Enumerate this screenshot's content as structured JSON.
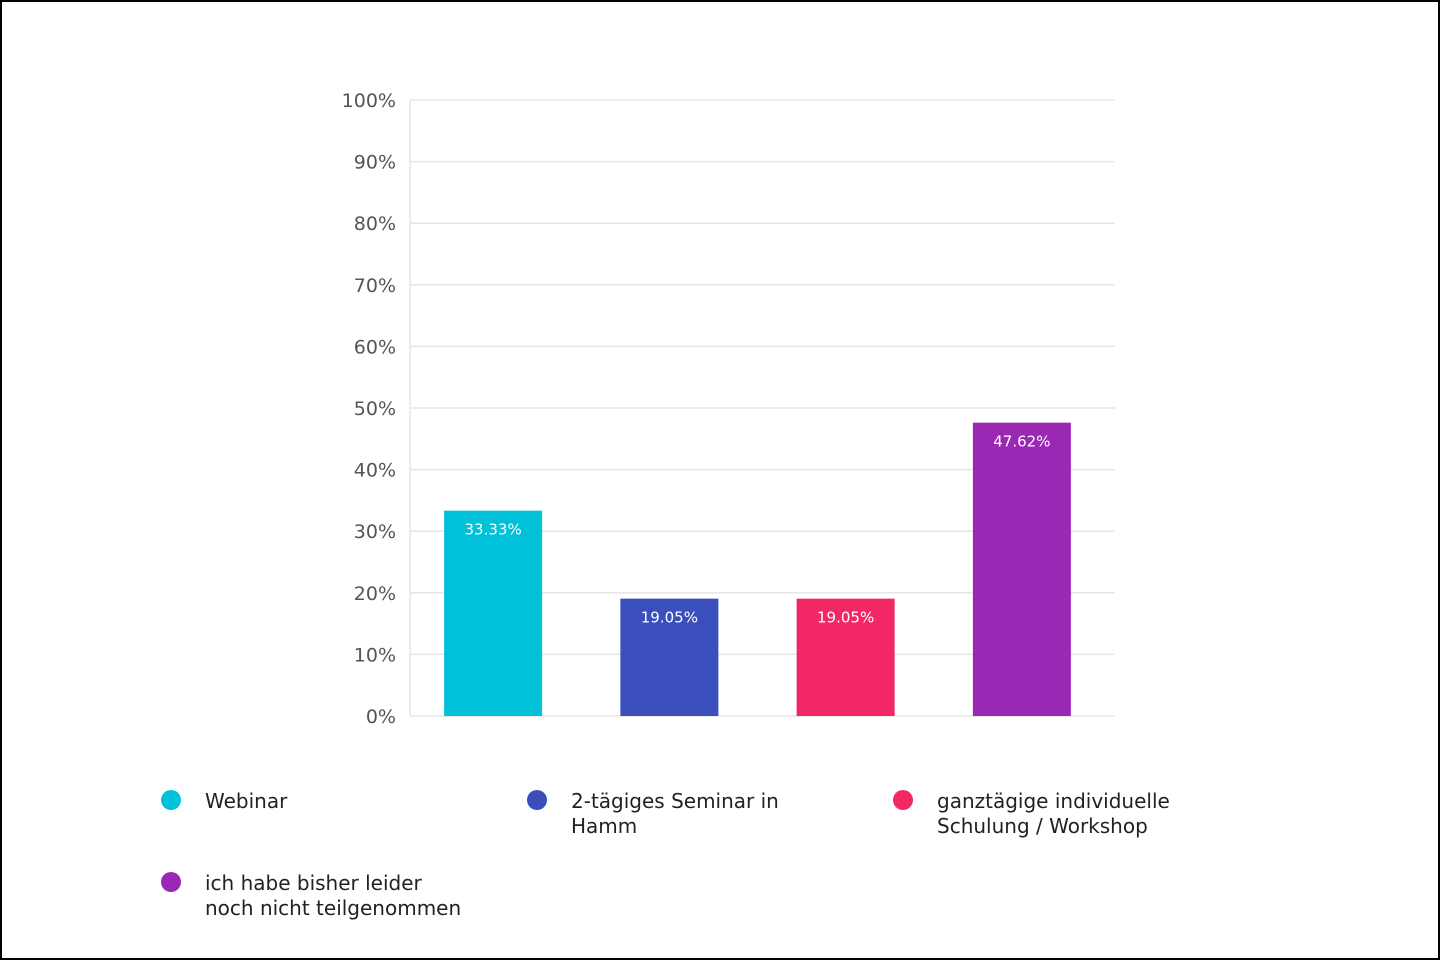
{
  "chart_data": {
    "type": "bar",
    "categories": [
      "Webinar",
      "2-tägiges Seminar in Hamm",
      "ganztägige individuelle Schulung / Workshop",
      "ich habe bisher leider noch nicht teilgenommen"
    ],
    "values": [
      33.33,
      19.05,
      19.05,
      47.62
    ],
    "value_labels": [
      "33.33%",
      "19.05%",
      "19.05%",
      "47.62%"
    ],
    "colors": [
      "#00c1d8",
      "#3b4fbc",
      "#f22866",
      "#9b27b5"
    ],
    "ylim": [
      0,
      100
    ],
    "yticks": [
      0,
      10,
      20,
      30,
      40,
      50,
      60,
      70,
      80,
      90,
      100
    ],
    "ytick_labels": [
      "0%",
      "10%",
      "20%",
      "30%",
      "40%",
      "50%",
      "60%",
      "70%",
      "80%",
      "90%",
      "100%"
    ],
    "grid": true,
    "legend_position": "bottom",
    "title": "",
    "xlabel": "",
    "ylabel": ""
  },
  "legend": {
    "items": [
      {
        "label_line1": "Webinar",
        "label_line2": ""
      },
      {
        "label_line1": "2-tägiges Seminar in",
        "label_line2": "Hamm"
      },
      {
        "label_line1": "ganztägige individuelle",
        "label_line2": "Schulung / Workshop"
      },
      {
        "label_line1": "ich habe bisher leider",
        "label_line2": "noch nicht teilgenommen"
      }
    ]
  }
}
